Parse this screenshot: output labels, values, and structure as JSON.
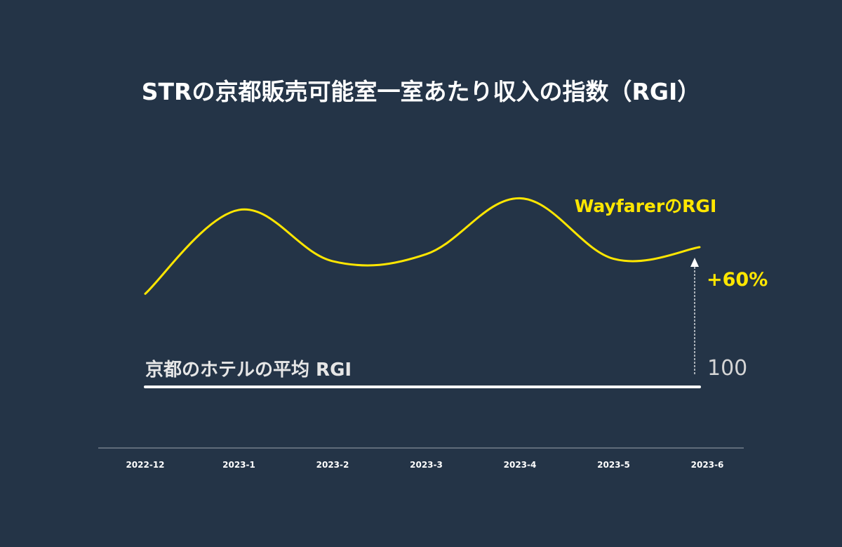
{
  "chart_data": {
    "type": "line",
    "title": "STRの京都販売可能室一室あたり収入の指数（RGI）",
    "categories": [
      "2022-12",
      "2023-1",
      "2023-2",
      "2023-3",
      "2023-4",
      "2023-5",
      "2023-6"
    ],
    "series": [
      {
        "name": "WayfarerのRGI",
        "values": [
          140,
          176,
          154,
          157,
          181,
          155,
          160
        ]
      }
    ],
    "baseline": {
      "label": "京都のホテルの平均 RGI",
      "value": 100
    },
    "annotation": "+60%",
    "grid": false,
    "colors": {
      "background": "#243447",
      "series": "#FFE600",
      "baseline": "#FFFFFF",
      "axis_text": "#FFFFFF",
      "baseline_value": "#D5D5D5"
    }
  }
}
